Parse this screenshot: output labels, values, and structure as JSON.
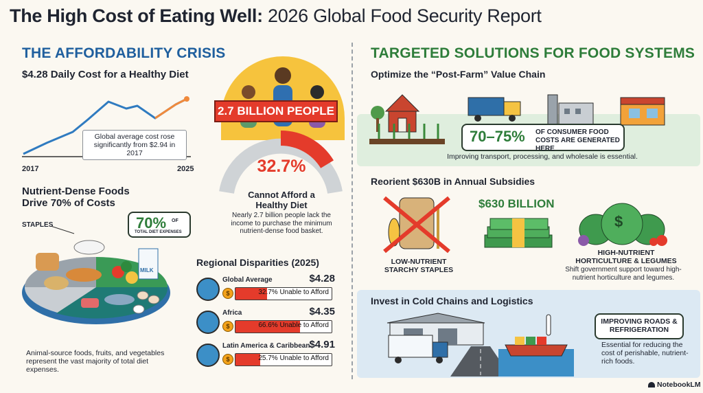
{
  "header": {
    "title_bold": "The High Cost of Eating Well:",
    "title_rest": " 2026 Global Food Security Report"
  },
  "left": {
    "section_title": "THE AFFORDABILITY CRISIS",
    "cost_chart": {
      "title": "$4.28 Daily Cost for a Healthy Diet",
      "note": "Global average cost rose significantly from $2.94 in 2017",
      "x_start_label": "2017",
      "x_end_label": "2025"
    },
    "people": {
      "banner": "2.7 BILLION PEOPLE",
      "percent": "32.7%",
      "percent_value": 32.7,
      "caption_title": "Cannot Afford a Healthy Diet",
      "caption_body": "Nearly 2.7 billion people lack the income to purchase the minimum nutrient-dense food basket."
    },
    "nutrient": {
      "title_line1": "Nutrient-Dense Foods",
      "title_line2": "Drive 70% of Costs",
      "staples_label": "STAPLES",
      "callout_big": "70%",
      "callout_of": "OF",
      "callout_small": "TOTAL DIET EXPENSES",
      "milk_label": "MILK",
      "footnote": "Animal-source foods, fruits, and vegetables represent the vast majority of total diet expenses."
    },
    "regional": {
      "title": "Regional Disparities (2025)",
      "coin_symbol": "$",
      "rows": [
        {
          "name": "Global Average",
          "cost": "$4.28",
          "bar_text": "32.7% Unable to Afford",
          "share": 0.327
        },
        {
          "name": "Africa",
          "cost": "$4.35",
          "bar_text": "66.6% Unable to Afford",
          "share": 0.666
        },
        {
          "name": "Latin America & Caribbean",
          "cost": "$4.91",
          "bar_text": "25.7% Unable to Afford",
          "share": 0.257
        }
      ]
    }
  },
  "right": {
    "section_title": "TARGETED SOLUTIONS FOR FOOD SYSTEMS",
    "postfarm": {
      "title": "Optimize the “Post-Farm” Value Chain",
      "stat_big": "70–75%",
      "stat_text": "OF CONSUMER FOOD COSTS ARE GENERATED HERE",
      "note": "Improving transport, processing, and wholesale is essential."
    },
    "subsidies": {
      "title": "Reorient $630B in Annual Subsidies",
      "amount": "$630 BILLION",
      "left_label": "LOW-NUTRIENT STARCHY STAPLES",
      "right_label": "HIGH-NUTRIENT HORTICULTURE & LEGUMES",
      "right_note": "Shift government support toward high-nutrient horticulture and legumes.",
      "bag_symbol": "$"
    },
    "cold": {
      "title": "Invest in Cold Chains and Logistics",
      "callout": "IMPROVING ROADS & REFRIGERATION",
      "note": "Essential for reducing the cost of perishable, nutrient-rich foods."
    }
  },
  "footer": {
    "brand": "NotebookLM"
  },
  "colors": {
    "blue_heading": "#1f5f9e",
    "green_heading": "#2e7d3a",
    "red_accent": "#e43b2b",
    "orange_line": "#f08a3c"
  }
}
